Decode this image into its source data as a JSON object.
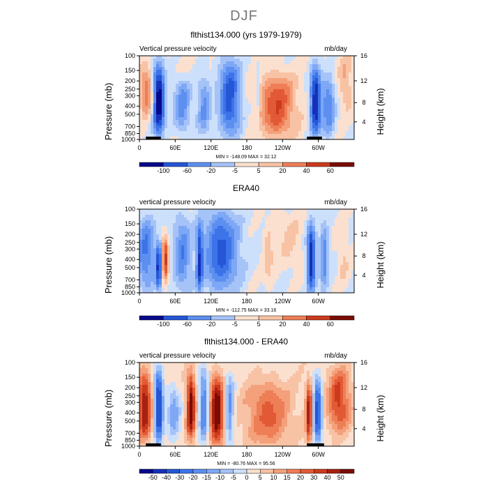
{
  "page": {
    "title": "DJF"
  },
  "colors": {
    "levels_cmap": [
      "#08088a",
      "#1530b8",
      "#2456d6",
      "#3d73e8",
      "#5c8ff0",
      "#7ea8f5",
      "#a6c3f8",
      "#cde0fb",
      "#fbe0cf",
      "#f8c2a4",
      "#f4a07b",
      "#ee7e56",
      "#e25a35",
      "#cc3a1d",
      "#a8200f",
      "#7a0c04"
    ],
    "frame": "#000000",
    "land": "#000000"
  },
  "chart_data": [
    {
      "type": "heatmap",
      "title": "flthist134.000 (yrs 1979-1979)",
      "left_label": "Vertical pressure velocity",
      "right_label": "mb/day",
      "ylabel": "Pressure (mb)",
      "y2label": "Height (km)",
      "yticks": [
        "100",
        "150",
        "200",
        "250",
        "300",
        "400",
        "500",
        "700",
        "850",
        "1000"
      ],
      "y2ticks": [
        "16",
        "12",
        "8",
        "4"
      ],
      "xticks": [
        "0",
        "60E",
        "120E",
        "180",
        "120W",
        "60W"
      ],
      "stats": "MIN = -148.09   MAX =  32.12",
      "levels": [
        "-100",
        "-60",
        "-20",
        "-5",
        "5",
        "20",
        "40",
        "60"
      ],
      "land_x": [
        [
          0.03,
          0.1
        ],
        [
          0.78,
          0.85
        ]
      ],
      "features": [
        {
          "x": 0.09,
          "w": 0.028,
          "v": -2.0,
          "top": 0.12,
          "bot": 0.93
        },
        {
          "x": 0.035,
          "w": 0.03,
          "v": 0.9,
          "top": 0.15,
          "bot": 0.7
        },
        {
          "x": 0.2,
          "w": 0.04,
          "v": -0.9,
          "top": 0.3,
          "bot": 0.9
        },
        {
          "x": 0.3,
          "w": 0.03,
          "v": -0.8,
          "top": 0.25,
          "bot": 0.95
        },
        {
          "x": 0.42,
          "w": 0.05,
          "v": -1.4,
          "top": 0.05,
          "bot": 0.95
        },
        {
          "x": 0.55,
          "w": 0.012,
          "v": -0.4,
          "top": 0.1,
          "bot": 0.9
        },
        {
          "x": 0.64,
          "w": 0.08,
          "v": 1.2,
          "top": 0.25,
          "bot": 0.95
        },
        {
          "x": 0.82,
          "w": 0.025,
          "v": -1.8,
          "top": 0.15,
          "bot": 0.95
        },
        {
          "x": 0.88,
          "w": 0.03,
          "v": -1.0,
          "top": 0.25,
          "bot": 0.95
        },
        {
          "x": 0.96,
          "w": 0.03,
          "v": 0.5,
          "top": 0.0,
          "bot": 0.6
        }
      ],
      "background": 0.1
    },
    {
      "type": "heatmap",
      "title": "ERA40",
      "left_label": "vertical pressure velocity",
      "right_label": "mb/day",
      "ylabel": "Pressure (mb)",
      "y2label": "Height (km)",
      "yticks": [
        "100",
        "150",
        "200",
        "250",
        "300",
        "400",
        "500",
        "700",
        "850",
        "1000"
      ],
      "y2ticks": [
        "16",
        "12",
        "8",
        "4"
      ],
      "xticks": [
        "0",
        "60E",
        "120E",
        "180",
        "120W",
        "60W"
      ],
      "stats": "MIN = -112.75   MAX =  33.16",
      "levels": [
        "-100",
        "-60",
        "-20",
        "-5",
        "5",
        "20",
        "40",
        "60"
      ],
      "land_x": [],
      "features": [
        {
          "x": 0.03,
          "w": 0.04,
          "v": -1.0,
          "top": 0.1,
          "bot": 0.95
        },
        {
          "x": 0.09,
          "w": 0.015,
          "v": -1.5,
          "top": 0.4,
          "bot": 0.95
        },
        {
          "x": 0.12,
          "w": 0.015,
          "v": 1.4,
          "top": 0.35,
          "bot": 0.85
        },
        {
          "x": 0.2,
          "w": 0.04,
          "v": -0.9,
          "top": 0.1,
          "bot": 0.95
        },
        {
          "x": 0.28,
          "w": 0.015,
          "v": -1.3,
          "top": 0.2,
          "bot": 0.98
        },
        {
          "x": 0.38,
          "w": 0.08,
          "v": -1.3,
          "top": 0.05,
          "bot": 0.95
        },
        {
          "x": 0.6,
          "w": 0.02,
          "v": 0.5,
          "top": 0.25,
          "bot": 0.85
        },
        {
          "x": 0.7,
          "w": 0.06,
          "v": 0.3,
          "top": 0.05,
          "bot": 0.7
        },
        {
          "x": 0.8,
          "w": 0.02,
          "v": -1.7,
          "top": 0.2,
          "bot": 0.98
        },
        {
          "x": 0.86,
          "w": 0.02,
          "v": -0.9,
          "top": 0.2,
          "bot": 0.95
        },
        {
          "x": 0.95,
          "w": 0.025,
          "v": 0.3,
          "top": 0.2,
          "bot": 0.9
        }
      ],
      "background": -0.05
    },
    {
      "type": "heatmap",
      "title": "flthist134.000 - ERA40",
      "left_label": "vertical pressure velocity",
      "right_label": "mb/day",
      "ylabel": "Pressure (mb)",
      "y2label": "Height (km)",
      "yticks": [
        "100",
        "150",
        "200",
        "250",
        "300",
        "400",
        "500",
        "700",
        "850",
        "1000"
      ],
      "y2ticks": [
        "16",
        "12",
        "8",
        "4"
      ],
      "xticks": [
        "0",
        "60E",
        "120E",
        "180",
        "120W",
        "60W"
      ],
      "stats": "MIN = -80.76   MAX =  95.56",
      "levels": [
        "-50",
        "-40",
        "-30",
        "-20",
        "-15",
        "-10",
        "-5",
        "0",
        "5",
        "10",
        "15",
        "20",
        "30",
        "40",
        "50"
      ],
      "land_x": [
        [
          0.03,
          0.1
        ],
        [
          0.78,
          0.86
        ]
      ],
      "features": [
        {
          "x": 0.025,
          "w": 0.03,
          "v": 1.6,
          "top": 0.15,
          "bot": 0.9
        },
        {
          "x": 0.09,
          "w": 0.02,
          "v": -1.8,
          "top": 0.1,
          "bot": 0.95
        },
        {
          "x": 0.16,
          "w": 0.03,
          "v": -0.8,
          "top": 0.3,
          "bot": 0.9
        },
        {
          "x": 0.24,
          "w": 0.02,
          "v": 1.8,
          "top": 0.15,
          "bot": 0.9
        },
        {
          "x": 0.3,
          "w": 0.02,
          "v": -1.2,
          "top": 0.1,
          "bot": 0.95
        },
        {
          "x": 0.36,
          "w": 0.03,
          "v": 1.9,
          "top": 0.2,
          "bot": 0.95
        },
        {
          "x": 0.42,
          "w": 0.02,
          "v": -1.0,
          "top": 0.15,
          "bot": 0.95
        },
        {
          "x": 0.6,
          "w": 0.1,
          "v": 0.9,
          "top": 0.25,
          "bot": 0.97
        },
        {
          "x": 0.79,
          "w": 0.015,
          "v": 1.5,
          "top": 0.25,
          "bot": 0.95
        },
        {
          "x": 0.83,
          "w": 0.02,
          "v": -1.6,
          "top": 0.2,
          "bot": 0.95
        },
        {
          "x": 0.93,
          "w": 0.05,
          "v": 1.2,
          "top": 0.1,
          "bot": 0.8
        }
      ],
      "background": 0.45
    }
  ]
}
